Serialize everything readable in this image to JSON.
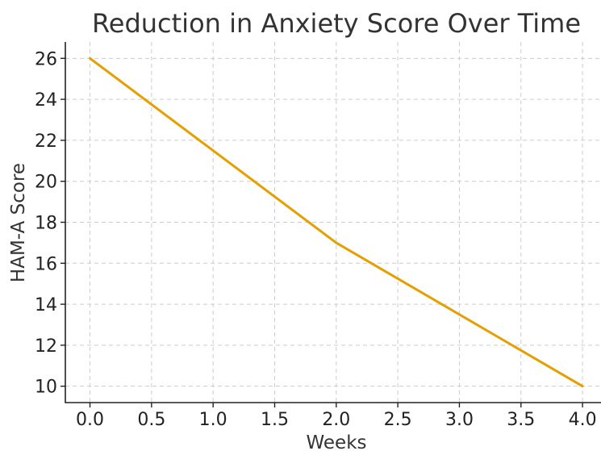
{
  "chart_data": {
    "type": "line",
    "title": "Reduction in Anxiety Score Over Time",
    "xlabel": "Weeks",
    "ylabel": "HAM-A Score",
    "xlim": [
      -0.2,
      4.15
    ],
    "ylim": [
      9.2,
      26.8
    ],
    "xticks": [
      "0.0",
      "0.5",
      "1.0",
      "1.5",
      "2.0",
      "2.5",
      "3.0",
      "3.5",
      "4.0"
    ],
    "yticks": [
      "10",
      "12",
      "14",
      "16",
      "18",
      "20",
      "22",
      "24",
      "26"
    ],
    "grid": true,
    "series": [
      {
        "x": [
          0,
          2,
          4
        ],
        "y": [
          26,
          17,
          10
        ],
        "color": "#E69F00"
      }
    ]
  }
}
